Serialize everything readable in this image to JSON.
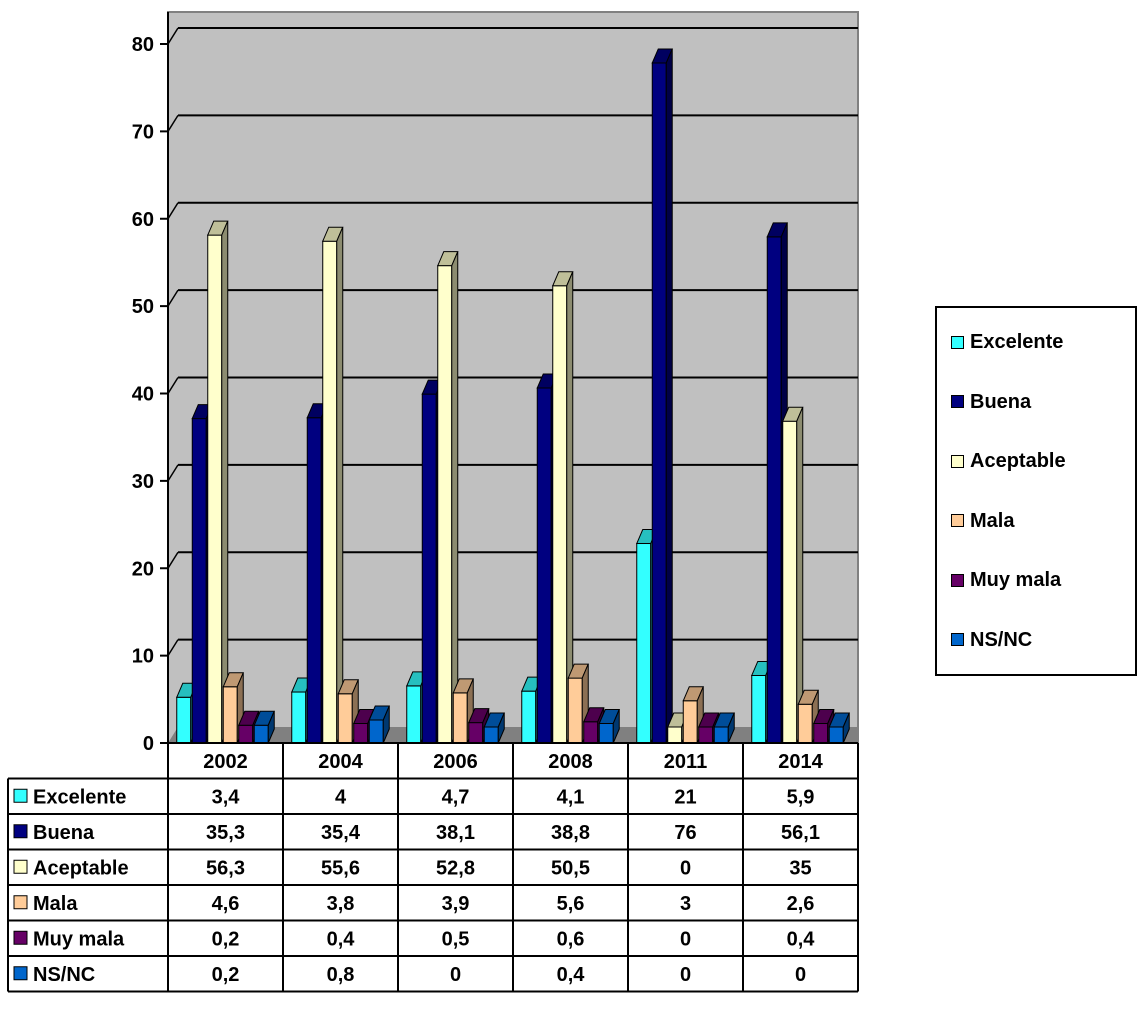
{
  "chart_data": {
    "type": "bar",
    "categories": [
      "2002",
      "2004",
      "2006",
      "2008",
      "2011",
      "2014"
    ],
    "series": [
      {
        "name": "Excelente",
        "color": "#33FFFF",
        "values": [
          3.4,
          4,
          4.7,
          4.1,
          21,
          5.9
        ],
        "labels": [
          "3,4",
          "4",
          "4,7",
          "4,1",
          "21",
          "5,9"
        ]
      },
      {
        "name": "Buena",
        "color": "#000080",
        "values": [
          35.3,
          35.4,
          38.1,
          38.8,
          76,
          56.1
        ],
        "labels": [
          "35,3",
          "35,4",
          "38,1",
          "38,8",
          "76",
          "56,1"
        ]
      },
      {
        "name": "Aceptable",
        "color": "#FFFFCC",
        "values": [
          56.3,
          55.6,
          52.8,
          50.5,
          0,
          35
        ],
        "labels": [
          "56,3",
          "55,6",
          "52,8",
          "50,5",
          "0",
          "35"
        ]
      },
      {
        "name": "Mala",
        "color": "#FFCC99",
        "values": [
          4.6,
          3.8,
          3.9,
          5.6,
          3,
          2.6
        ],
        "labels": [
          "4,6",
          "3,8",
          "3,9",
          "5,6",
          "3",
          "2,6"
        ]
      },
      {
        "name": "Muy mala",
        "color": "#660066",
        "values": [
          0.2,
          0.4,
          0.5,
          0.6,
          0,
          0.4
        ],
        "labels": [
          "0,2",
          "0,4",
          "0,5",
          "0,6",
          "0",
          "0,4"
        ]
      },
      {
        "name": "NS/NC",
        "color": "#0066CC",
        "values": [
          0.2,
          0.8,
          0,
          0.4,
          0,
          0
        ],
        "labels": [
          "0,2",
          "0,8",
          "0",
          "0,4",
          "0",
          "0"
        ]
      }
    ],
    "ylim": [
      0,
      80
    ],
    "yticks": [
      "0",
      "10",
      "20",
      "30",
      "40",
      "50",
      "60",
      "70",
      "80"
    ],
    "grid": true,
    "legend": "right",
    "plot_background": "#C0C0C0",
    "data_table": true,
    "title": "",
    "xlabel": "",
    "ylabel": ""
  }
}
